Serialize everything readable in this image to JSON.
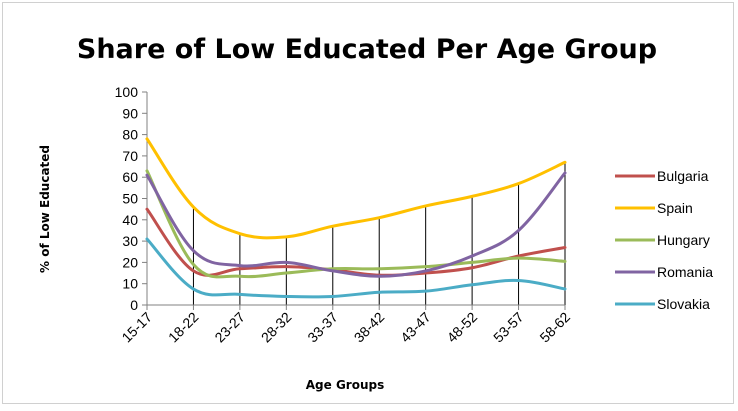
{
  "chart_data": {
    "type": "line",
    "title": "Share of Low Educated Per Age Group",
    "xlabel": "Age Groups",
    "ylabel": "% of Low Educated",
    "ylim": [
      0,
      100
    ],
    "yticks": [
      "0",
      "10",
      "20",
      "30",
      "40",
      "50",
      "60",
      "70",
      "80",
      "90",
      "100"
    ],
    "categories": [
      "15-17",
      "18-22",
      "23-27",
      "28-32",
      "33-37",
      "38-42",
      "43-47",
      "48-52",
      "53-57",
      "58-62"
    ],
    "legend_position": "right",
    "series": [
      {
        "name": "Bulgaria",
        "color": "#c0504d",
        "values": [
          45,
          16,
          17,
          18,
          16.5,
          14,
          15,
          17.5,
          23,
          27
        ]
      },
      {
        "name": "Spain",
        "color": "#ffc000",
        "values": [
          78,
          46,
          33.5,
          32,
          37,
          41,
          46.5,
          51,
          57,
          67
        ]
      },
      {
        "name": "Hungary",
        "color": "#9bbb59",
        "values": [
          63,
          19,
          13.5,
          15,
          17,
          17,
          18,
          20,
          22,
          20.5
        ]
      },
      {
        "name": "Romania",
        "color": "#8064a2",
        "values": [
          61,
          25.5,
          18.5,
          20,
          16,
          13.5,
          16,
          23,
          35,
          62
        ]
      },
      {
        "name": "Slovakia",
        "color": "#4bacc6",
        "values": [
          31,
          7.5,
          5,
          4,
          4,
          6,
          6.5,
          9.5,
          11.5,
          7.5
        ]
      }
    ]
  }
}
